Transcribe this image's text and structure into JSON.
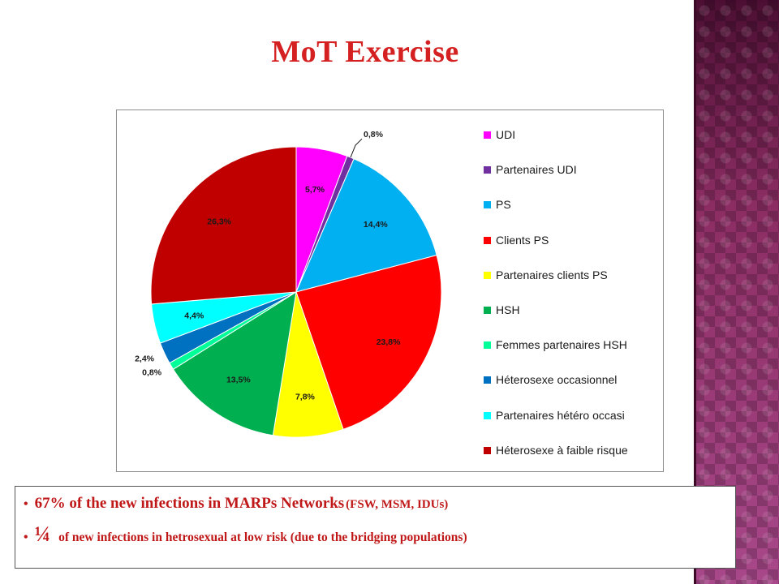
{
  "slide": {
    "title": "MoT Exercise"
  },
  "chart_data": {
    "type": "pie",
    "start": "top",
    "direction": "clockwise",
    "slices": [
      {
        "name": "UDI",
        "value": 5.7,
        "label": "5,7%",
        "color": "#ff00ff"
      },
      {
        "name": "Partenaires UDI",
        "value": 0.8,
        "label": "0,8%",
        "color": "#7030a0"
      },
      {
        "name": "PS",
        "value": 14.4,
        "label": "14,4%",
        "color": "#00b0f0"
      },
      {
        "name": "Clients PS",
        "value": 23.8,
        "label": "23,8%",
        "color": "#ff0000"
      },
      {
        "name": "Partenaires clients PS",
        "value": 7.8,
        "label": "7,8%",
        "color": "#ffff00"
      },
      {
        "name": "HSH",
        "value": 13.5,
        "label": "13,5%",
        "color": "#00b050"
      },
      {
        "name": "Femmes partenaires HSH",
        "value": 0.8,
        "label": "0,8%",
        "color": "#00ff99"
      },
      {
        "name": "Héterosexe occasionnel",
        "value": 2.4,
        "label": "2,4%",
        "color": "#0070c0"
      },
      {
        "name": "Partenaires hétéro occasi",
        "value": 4.4,
        "label": "4,4%",
        "color": "#00ffff"
      },
      {
        "name": "Héterosexe à faible risque",
        "value": 26.3,
        "label": "26,3%",
        "color": "#c00000"
      }
    ],
    "legend_position": "right"
  },
  "notes": {
    "bullet": "•",
    "line1_main": "67% of  the new infections in MARPs Networks",
    "line1_sub": "(FSW, MSM, IDUs)",
    "line2_big": "¼",
    "line2_text": "of new infections in hetrosexual at low risk  (due to the bridging populations)"
  }
}
